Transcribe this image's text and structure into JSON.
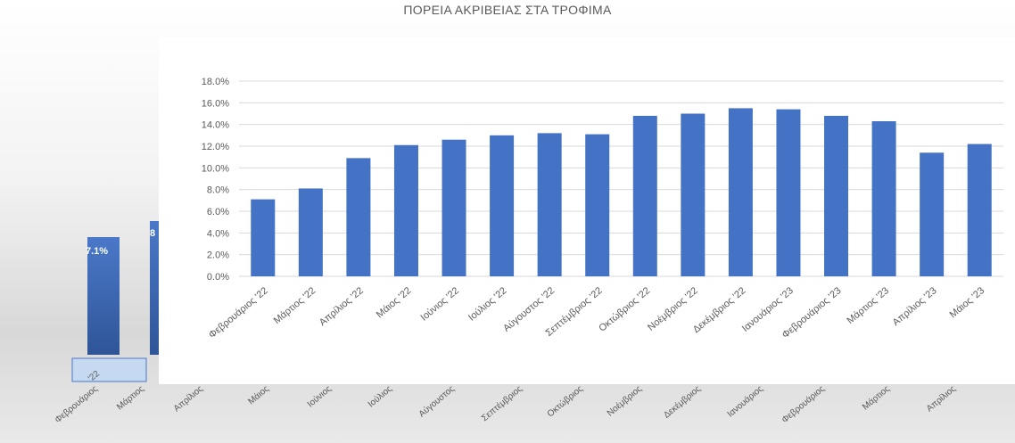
{
  "chart_title": "ΠΟΡΕΙΑ ΑΚΡΙΒΕΙΑΣ ΣΤΑ ΤΡΟΦΙΜΑ",
  "colors": {
    "bar": "#4472c4",
    "grid": "#d9d9d9",
    "text": "#595959"
  },
  "background_chart": {
    "data_labels": [
      "7.1%",
      "8"
    ],
    "month_labels": [
      "Φεβρουάριος",
      "Μάρτιος",
      "Απρίλιος",
      "Μάιος",
      "Ιούνιος",
      "Ιούλιος",
      "Αύγουστος",
      "Σεπτέμβριος",
      "Οκτώβριος",
      "Νοέμβριος",
      "Δεκέμβριος",
      "Ιανουάριος",
      "Φεβρουάριος",
      "Μάρτιος",
      "Απρίλιος"
    ],
    "selected_label": "'22"
  },
  "chart_data": {
    "type": "bar",
    "title": "ΠΟΡΕΙΑ ΑΚΡΙΒΕΙΑΣ ΣΤΑ ΤΡΟΦΙΜΑ",
    "xlabel": "",
    "ylabel": "",
    "categories": [
      "Φεβρουάριος '22",
      "Μάρτιος '22",
      "Απρίλιος '22",
      "Μάιος '22",
      "Ιούνιος '22",
      "Ιούλιος '22",
      "Αύγουστος '22",
      "Σεπτέμβριος '22",
      "Οκτώβριος '22",
      "Νοέμβριος '22",
      "Δεκέμβριος '22",
      "Ιανουάριος '23",
      "Φεβρουάριος '23",
      "Μάρτιος '23",
      "Απρίλιος '23",
      "Μάιος '23"
    ],
    "values": [
      7.1,
      8.1,
      10.9,
      12.1,
      12.6,
      13.0,
      13.2,
      13.1,
      14.8,
      15.0,
      15.5,
      15.4,
      14.8,
      14.3,
      11.4,
      12.2
    ],
    "ylim": [
      0,
      18
    ],
    "yticks": [
      "0.0%",
      "2.0%",
      "4.0%",
      "6.0%",
      "8.0%",
      "10.0%",
      "12.0%",
      "14.0%",
      "16.0%",
      "18.0%"
    ],
    "grid": true,
    "legend": "none"
  }
}
